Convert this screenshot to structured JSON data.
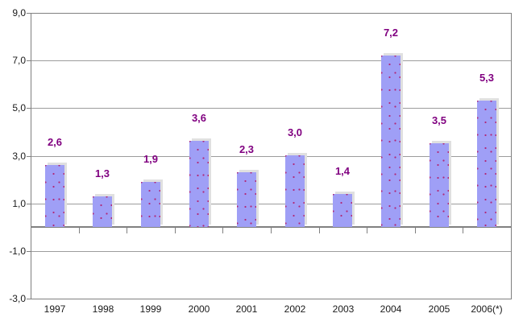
{
  "chart_data": {
    "type": "bar",
    "title": "",
    "xlabel": "",
    "ylabel": "",
    "categories": [
      "1997",
      "1998",
      "1999",
      "2000",
      "2001",
      "2002",
      "2003",
      "2004",
      "2005",
      "2006(*)"
    ],
    "values": [
      2.6,
      1.3,
      1.9,
      3.6,
      2.3,
      3.0,
      1.4,
      7.2,
      3.5,
      5.3
    ],
    "value_labels": [
      "2,6",
      "1,3",
      "1,9",
      "3,6",
      "2,3",
      "3,0",
      "1,4",
      "7,2",
      "3,5",
      "5,3"
    ],
    "decimal_separator": ",",
    "ylim": [
      -3,
      9
    ],
    "y_ticks": [
      {
        "value": 9,
        "label": "9,0"
      },
      {
        "value": 7,
        "label": "7,0"
      },
      {
        "value": 5,
        "label": "5,0"
      },
      {
        "value": 3,
        "label": "3,0"
      },
      {
        "value": 1,
        "label": "1,0"
      },
      {
        "value": -1,
        "label": "-1,0"
      },
      {
        "value": -3,
        "label": "-3,0"
      }
    ],
    "grid": true,
    "legend": null,
    "colors": {
      "bar_fill": "#9f9ff6",
      "bar_dot": "#b02878",
      "bar_shadow": "#e0e0e0",
      "data_label": "#800080",
      "axis_line": "#808080",
      "gridline": "#9c9c9c",
      "tick_text": "#1a1a1a",
      "background": "#ffffff"
    }
  }
}
